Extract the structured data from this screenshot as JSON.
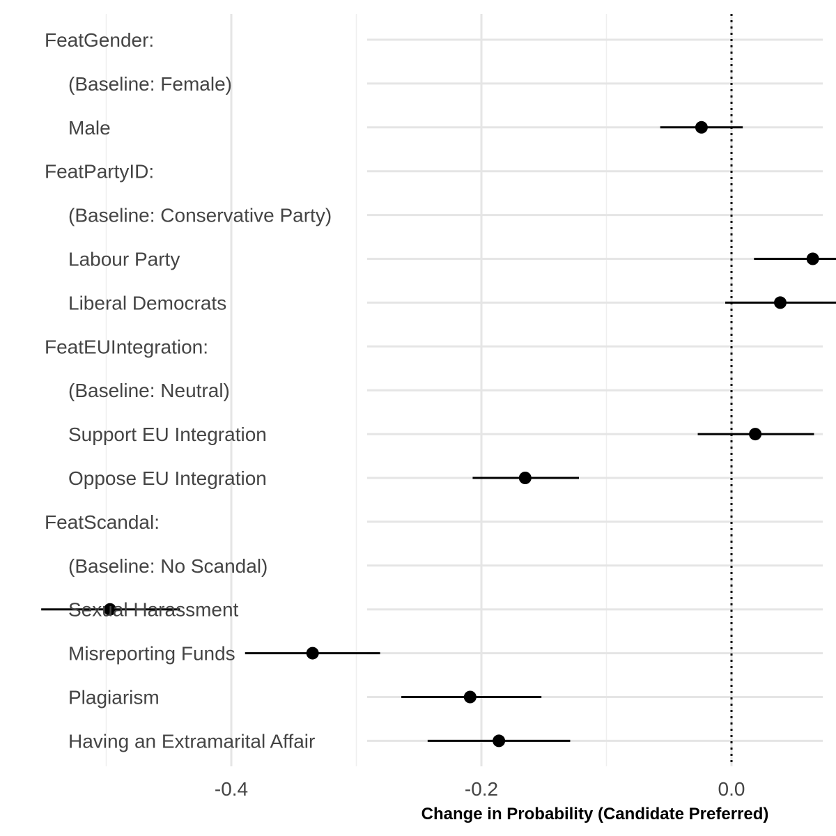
{
  "chart_data": {
    "type": "scatter",
    "orientation": "horizontal",
    "xlabel": "Change in Probability (Candidate Preferred)",
    "xlim": [
      -0.585,
      0.145
    ],
    "x_ticks": [
      -0.4,
      -0.2,
      0.0
    ],
    "x_tick_labels": [
      "-0.4",
      "-0.2",
      "0.0"
    ],
    "reference_line": 0.0,
    "grid": true,
    "rows": [
      {
        "label": "FeatGender:",
        "header": true
      },
      {
        "label": "(Baseline: Female)",
        "header": false
      },
      {
        "label": "Male",
        "header": false,
        "estimate": -0.024,
        "lower": -0.057,
        "upper": 0.009
      },
      {
        "label": "FeatPartyID:",
        "header": true
      },
      {
        "label": "(Baseline: Conservative Party)",
        "header": false
      },
      {
        "label": "Labour Party",
        "header": false,
        "estimate": 0.065,
        "lower": 0.018,
        "upper": 0.112
      },
      {
        "label": "Liberal Democrats",
        "header": false,
        "estimate": 0.039,
        "lower": -0.005,
        "upper": 0.084
      },
      {
        "label": "FeatEUIntegration:",
        "header": true
      },
      {
        "label": "(Baseline: Neutral)",
        "header": false
      },
      {
        "label": "Support EU Integration",
        "header": false,
        "estimate": 0.019,
        "lower": -0.027,
        "upper": 0.066
      },
      {
        "label": "Oppose EU Integration",
        "header": false,
        "estimate": -0.165,
        "lower": -0.207,
        "upper": -0.122
      },
      {
        "label": "FeatScandal:",
        "header": true
      },
      {
        "label": "(Baseline: No Scandal)",
        "header": false
      },
      {
        "label": "Sexual Harassment",
        "header": false,
        "estimate": -0.497,
        "lower": -0.552,
        "upper": -0.441
      },
      {
        "label": "Misreporting Funds",
        "header": false,
        "estimate": -0.335,
        "lower": -0.389,
        "upper": -0.281
      },
      {
        "label": "Plagiarism",
        "header": false,
        "estimate": -0.209,
        "lower": -0.264,
        "upper": -0.152
      },
      {
        "label": "Having an Extramarital Affair",
        "header": false,
        "estimate": -0.186,
        "lower": -0.243,
        "upper": -0.129
      }
    ]
  }
}
